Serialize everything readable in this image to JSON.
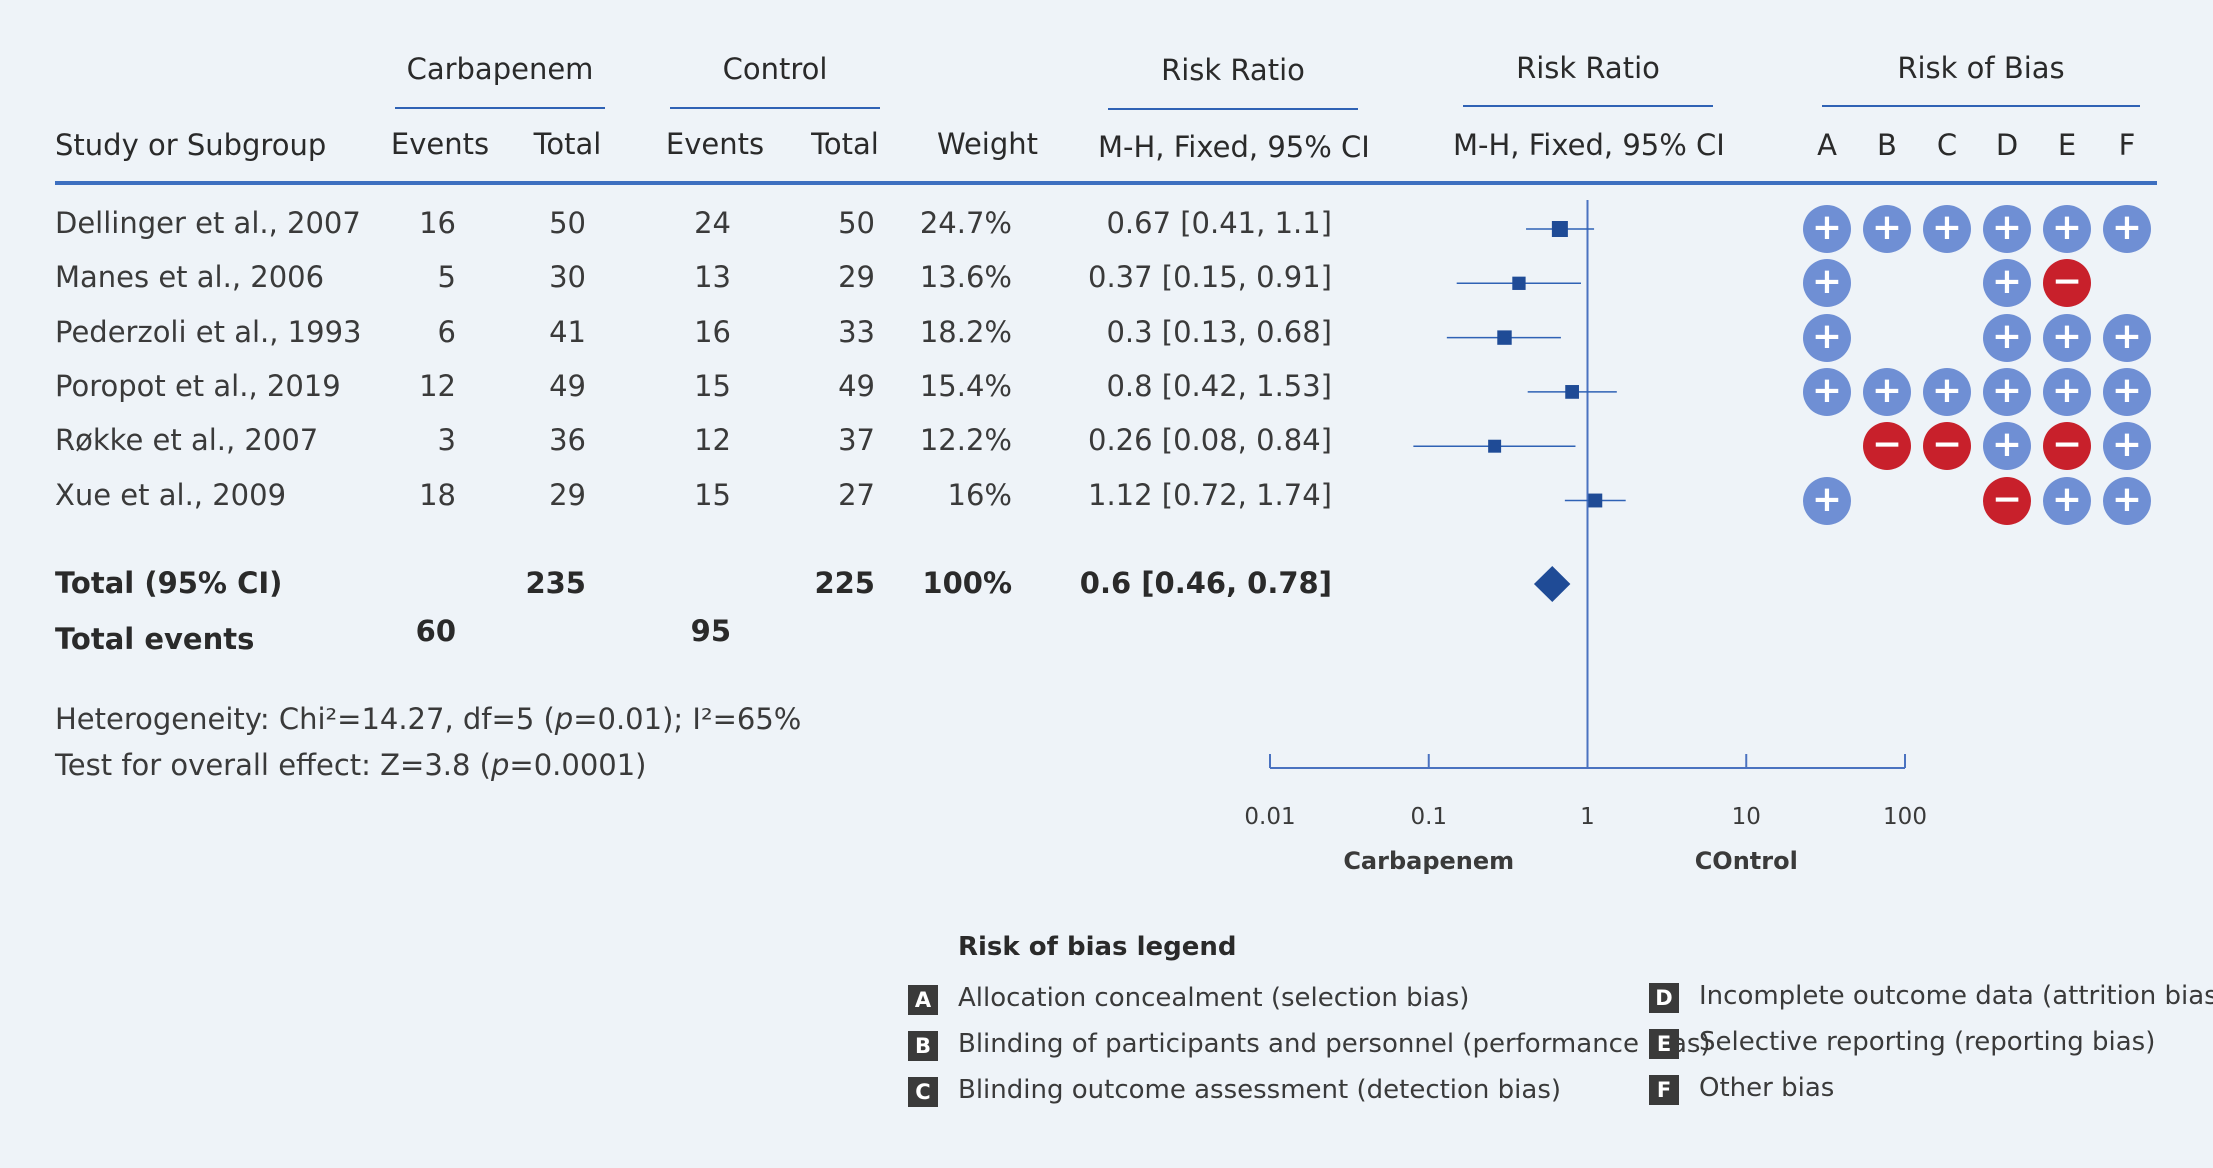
{
  "headers": {
    "study": "Study or Subgroup",
    "group_exp": "Carbapenem",
    "group_ctl": "Control",
    "events": "Events",
    "total": "Total",
    "weight": "Weight",
    "rr_title": "Risk Ratio",
    "rr_method": "M-H, Fixed, 95% CI",
    "rob_title": "Risk of Bias",
    "rob_cols": [
      "A",
      "B",
      "C",
      "D",
      "E",
      "F"
    ]
  },
  "studies": [
    {
      "name": "Dellinger et al., 2007",
      "exp_events": "16",
      "exp_total": "50",
      "ctl_events": "24",
      "ctl_total": "50",
      "weight": "24.7%",
      "ci_text": "0.67 [0.41, 1.1]",
      "rob": [
        "+",
        "+",
        "+",
        "+",
        "+",
        "+"
      ]
    },
    {
      "name": "Manes et al., 2006",
      "exp_events": "5",
      "exp_total": "30",
      "ctl_events": "13",
      "ctl_total": "29",
      "weight": "13.6%",
      "ci_text": "0.37 [0.15, 0.91]",
      "rob": [
        "+",
        "",
        "",
        "+",
        "-",
        ""
      ]
    },
    {
      "name": "Pederzoli et al., 1993",
      "exp_events": "6",
      "exp_total": "41",
      "ctl_events": "16",
      "ctl_total": "33",
      "weight": "18.2%",
      "ci_text": "0.3 [0.13, 0.68]",
      "rob": [
        "+",
        "",
        "",
        "+",
        "+",
        "+"
      ]
    },
    {
      "name": "Poropot et al., 2019",
      "exp_events": "12",
      "exp_total": "49",
      "ctl_events": "15",
      "ctl_total": "49",
      "weight": "15.4%",
      "ci_text": "0.8 [0.42, 1.53]",
      "rob": [
        "+",
        "+",
        "+",
        "+",
        "+",
        "+"
      ]
    },
    {
      "name": "Røkke et al., 2007",
      "exp_events": "3",
      "exp_total": "36",
      "ctl_events": "12",
      "ctl_total": "37",
      "weight": "12.2%",
      "ci_text": "0.26 [0.08, 0.84]",
      "rob": [
        "",
        "-",
        "-",
        "+",
        "-",
        "+"
      ]
    },
    {
      "name": "Xue et al., 2009",
      "exp_events": "18",
      "exp_total": "29",
      "ctl_events": "15",
      "ctl_total": "27",
      "weight": "16%",
      "ci_text": "1.12 [0.72, 1.74]",
      "rob": [
        "+",
        "",
        "",
        "-",
        "+",
        "+"
      ]
    }
  ],
  "total": {
    "label": "Total (95% CI)",
    "exp_total": "235",
    "ctl_total": "225",
    "weight": "100%",
    "ci_text": "0.6 [0.46, 0.78]"
  },
  "events": {
    "label": "Total events",
    "exp": "60",
    "ctl": "95"
  },
  "heterogeneity": {
    "prefix": "Heterogeneity: Chi²=14.27, df=5 (",
    "p_symbol": "p",
    "suffix": "=0.01); I²=65%"
  },
  "overall_effect": {
    "prefix": "Test for overall effect:  Z=3.8 (",
    "p_symbol": "p",
    "suffix": "=0.0001)"
  },
  "legend": {
    "title": "Risk of bias legend",
    "items": [
      {
        "key": "A",
        "text": "Allocation concealment (selection bias)"
      },
      {
        "key": "B",
        "text": "Blinding of participants and personnel (performance bias)"
      },
      {
        "key": "C",
        "text": "Blinding outcome assessment (detection bias)"
      },
      {
        "key": "D",
        "text": "Incomplete outcome data (attrition bias)"
      },
      {
        "key": "E",
        "text": "Selective reporting (reporting bias)"
      },
      {
        "key": "F",
        "text": "Other bias"
      }
    ]
  },
  "colors": {
    "accent": "#2f62b5",
    "marker": "#1f4b96",
    "low_risk": "#6f8fd4",
    "high_risk": "#c8202b",
    "background": "#eef3f8"
  },
  "chart_data": {
    "type": "forest",
    "x_scale": "log",
    "xlim": [
      0.01,
      100
    ],
    "x_ticks": [
      "0.01",
      "0.1",
      "1",
      "10",
      "100"
    ],
    "favours_left": "Carbapenem",
    "favours_right": "COntrol",
    "reference_line": 1,
    "series": [
      {
        "name": "Dellinger et al., 2007",
        "rr": 0.67,
        "lo": 0.41,
        "hi": 1.1,
        "weight": 24.7
      },
      {
        "name": "Manes et al., 2006",
        "rr": 0.37,
        "lo": 0.15,
        "hi": 0.91,
        "weight": 13.6
      },
      {
        "name": "Pederzoli et al., 1993",
        "rr": 0.3,
        "lo": 0.13,
        "hi": 0.68,
        "weight": 18.2
      },
      {
        "name": "Poropot et al., 2019",
        "rr": 0.8,
        "lo": 0.42,
        "hi": 1.53,
        "weight": 15.4
      },
      {
        "name": "Røkke et al., 2007",
        "rr": 0.26,
        "lo": 0.08,
        "hi": 0.84,
        "weight": 12.2
      },
      {
        "name": "Xue et al., 2009",
        "rr": 1.12,
        "lo": 0.72,
        "hi": 1.74,
        "weight": 16
      }
    ],
    "pooled": {
      "rr": 0.6,
      "lo": 0.46,
      "hi": 0.78
    }
  }
}
